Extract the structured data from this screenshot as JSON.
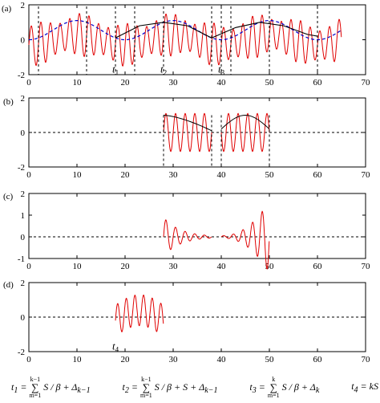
{
  "chart_data": [
    {
      "panel_label": "(a)",
      "type": "line",
      "xlim": [
        0,
        70
      ],
      "ylim": [
        -2,
        2
      ],
      "xticks": [
        0,
        10,
        20,
        30,
        40,
        50,
        60,
        70
      ],
      "yticks": [
        -2,
        0,
        2
      ],
      "grid": false,
      "series": [
        {
          "color": "#e00000",
          "description_key": "oscillation",
          "x_range": [
            0,
            65
          ],
          "carrier_period": 2.0,
          "envelope_min": [
            -1.5,
            1.0
          ],
          "envelope_max": [
            -1.3,
            1.7
          ]
        },
        {
          "color": "#0000cc",
          "style": "dashed",
          "description_key": "slow_envelope",
          "x": [
            0,
            10,
            20,
            30,
            40,
            50,
            60,
            65
          ],
          "y": [
            0.0,
            1.0,
            0.0,
            1.1,
            0.0,
            1.1,
            0.0,
            -0.2
          ]
        },
        {
          "color": "#000000",
          "style": "solid",
          "description_key": "segment_envelope",
          "x": [
            18,
            23,
            28,
            33,
            38,
            43,
            48,
            53,
            58,
            60
          ],
          "y": [
            0.1,
            0.8,
            1.0,
            0.8,
            0.1,
            0.7,
            1.0,
            0.8,
            0.3,
            0.2
          ]
        }
      ],
      "vlines": [
        2,
        12,
        18,
        22,
        28,
        38,
        40,
        42,
        50,
        60
      ],
      "markers": [
        {
          "name": "t",
          "sub": "1",
          "x": 18,
          "y": -1.7
        },
        {
          "name": "t",
          "sub": "2",
          "x": 28,
          "y": -1.7
        },
        {
          "name": "t",
          "sub": "3",
          "x": 40,
          "y": -1.7
        }
      ]
    },
    {
      "panel_label": "(b)",
      "type": "line",
      "xlim": [
        0,
        70
      ],
      "ylim": [
        -2,
        2
      ],
      "xticks": [
        0,
        10,
        20,
        30,
        40,
        50,
        60,
        70
      ],
      "yticks": [
        -2,
        0,
        2
      ],
      "zero_line": "dashed",
      "segments": [
        [
          28,
          38
        ],
        [
          40,
          50
        ]
      ],
      "vlines": [
        28,
        38,
        40,
        50
      ],
      "envelope_peak": 1.0
    },
    {
      "panel_label": "(c)",
      "type": "line",
      "xlim": [
        0,
        70
      ],
      "ylim": [
        -1,
        2
      ],
      "xticks": [
        0,
        10,
        20,
        30,
        40,
        50,
        60,
        70
      ],
      "yticks": [
        -1,
        0,
        1,
        2
      ],
      "zero_line": "dashed",
      "segments": [
        [
          28,
          38
        ],
        [
          40,
          50
        ]
      ],
      "amplitude_profile": "decay_then_grow"
    },
    {
      "panel_label": "(d)",
      "type": "line",
      "xlim": [
        0,
        70
      ],
      "ylim": [
        -2,
        2
      ],
      "xticks": [
        0,
        10,
        20,
        30,
        40,
        50,
        60,
        70
      ],
      "yticks": [
        -2,
        0,
        2
      ],
      "zero_line": "dashed",
      "segments": [
        [
          18,
          28
        ]
      ],
      "markers": [
        {
          "name": "t",
          "sub": "4",
          "x": 18,
          "y": -1.7
        }
      ]
    }
  ],
  "formulas": [
    {
      "t": "t",
      "sub": "1",
      "rhs": "= ∑ S / β + Δ",
      "sum_top": "k−1",
      "sum_bot": "m=1",
      "delta_sub": "k−1"
    },
    {
      "t": "t",
      "sub": "2",
      "rhs": "= ∑ S / β + S + Δ",
      "sum_top": "k−1",
      "sum_bot": "m=1",
      "delta_sub": "k−1"
    },
    {
      "t": "t",
      "sub": "3",
      "rhs": "= ∑ S / β + Δ",
      "sum_top": "k",
      "sum_bot": "m=1",
      "delta_sub": "k"
    },
    {
      "t": "t",
      "sub": "4",
      "rhs": "= kS"
    }
  ]
}
